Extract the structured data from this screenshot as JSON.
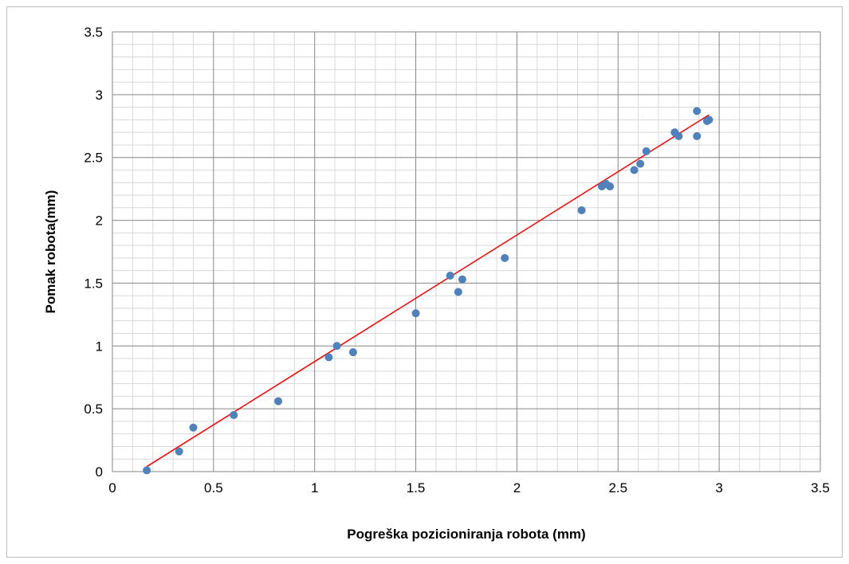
{
  "chart_data": {
    "type": "scatter",
    "title": "",
    "xlabel": "Pogreška pozicioniranja robota (mm)",
    "ylabel": "Pomak robota(mm)",
    "xlim": [
      0,
      3.5
    ],
    "ylim": [
      0,
      3.5
    ],
    "x_ticks": [
      "0",
      "0.5",
      "1",
      "1.5",
      "2",
      "2.5",
      "3",
      "3.5"
    ],
    "y_ticks": [
      "0",
      "0.5",
      "1",
      "1.5",
      "2",
      "2.5",
      "3",
      "3.5"
    ],
    "grid": true,
    "legend": "none",
    "marker_color": "#4f81bd",
    "trendline_color": "#ff0000",
    "points": [
      {
        "x": 0.17,
        "y": 0.01
      },
      {
        "x": 0.33,
        "y": 0.16
      },
      {
        "x": 0.4,
        "y": 0.35
      },
      {
        "x": 0.6,
        "y": 0.45
      },
      {
        "x": 0.82,
        "y": 0.56
      },
      {
        "x": 1.07,
        "y": 0.91
      },
      {
        "x": 1.11,
        "y": 1.0
      },
      {
        "x": 1.19,
        "y": 0.95
      },
      {
        "x": 1.5,
        "y": 1.26
      },
      {
        "x": 1.67,
        "y": 1.56
      },
      {
        "x": 1.71,
        "y": 1.43
      },
      {
        "x": 1.73,
        "y": 1.53
      },
      {
        "x": 1.94,
        "y": 1.7
      },
      {
        "x": 2.32,
        "y": 2.08
      },
      {
        "x": 2.42,
        "y": 2.27
      },
      {
        "x": 2.44,
        "y": 2.29
      },
      {
        "x": 2.46,
        "y": 2.27
      },
      {
        "x": 2.58,
        "y": 2.4
      },
      {
        "x": 2.61,
        "y": 2.45
      },
      {
        "x": 2.64,
        "y": 2.55
      },
      {
        "x": 2.78,
        "y": 2.7
      },
      {
        "x": 2.8,
        "y": 2.67
      },
      {
        "x": 2.89,
        "y": 2.87
      },
      {
        "x": 2.89,
        "y": 2.67
      },
      {
        "x": 2.94,
        "y": 2.79
      },
      {
        "x": 2.95,
        "y": 2.8
      }
    ],
    "trendline": {
      "x": [
        0.17,
        2.95
      ],
      "y": [
        0.04,
        2.84
      ]
    }
  }
}
